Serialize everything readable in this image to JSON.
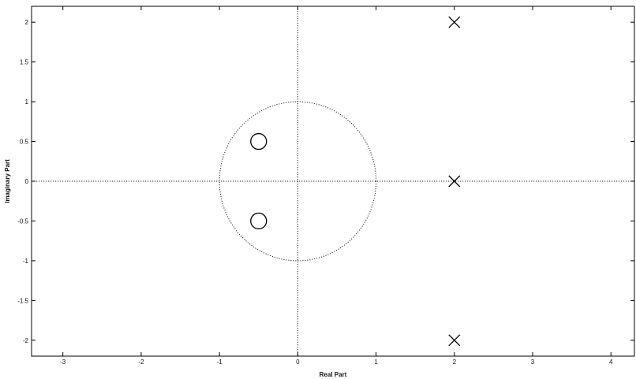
{
  "chart_data": {
    "type": "scatter",
    "title": "",
    "xlabel": "Real Part",
    "ylabel": "Imaginary Part",
    "xlim": [
      -3.4,
      4.3
    ],
    "ylim": [
      -2.2,
      2.2
    ],
    "xticks": [
      -3,
      -2,
      -1,
      0,
      1,
      2,
      3,
      4
    ],
    "yticks": [
      2,
      1.5,
      1,
      0.5,
      0,
      -0.5,
      -1,
      -1.5,
      -2
    ],
    "xtick_labels": [
      "-3",
      "-2",
      "-1",
      "0",
      "1",
      "2",
      "3",
      "4"
    ],
    "ytick_labels": [
      "2",
      "1.5",
      "1",
      "0.5",
      "0",
      "-0.5",
      "-1",
      "-1.5",
      "-2"
    ],
    "grid": false,
    "unit_circle": {
      "center": [
        0,
        0
      ],
      "radius": 1,
      "style": "dotted"
    },
    "zero_axes": {
      "style": "dotted"
    },
    "series": [
      {
        "marker": "o",
        "points": [
          {
            "x": -0.5,
            "y": 0.5
          },
          {
            "x": -0.5,
            "y": -0.5
          }
        ]
      },
      {
        "marker": "x",
        "points": [
          {
            "x": 2,
            "y": 2
          },
          {
            "x": 2,
            "y": 0
          },
          {
            "x": 2,
            "y": -2
          }
        ]
      }
    ]
  }
}
